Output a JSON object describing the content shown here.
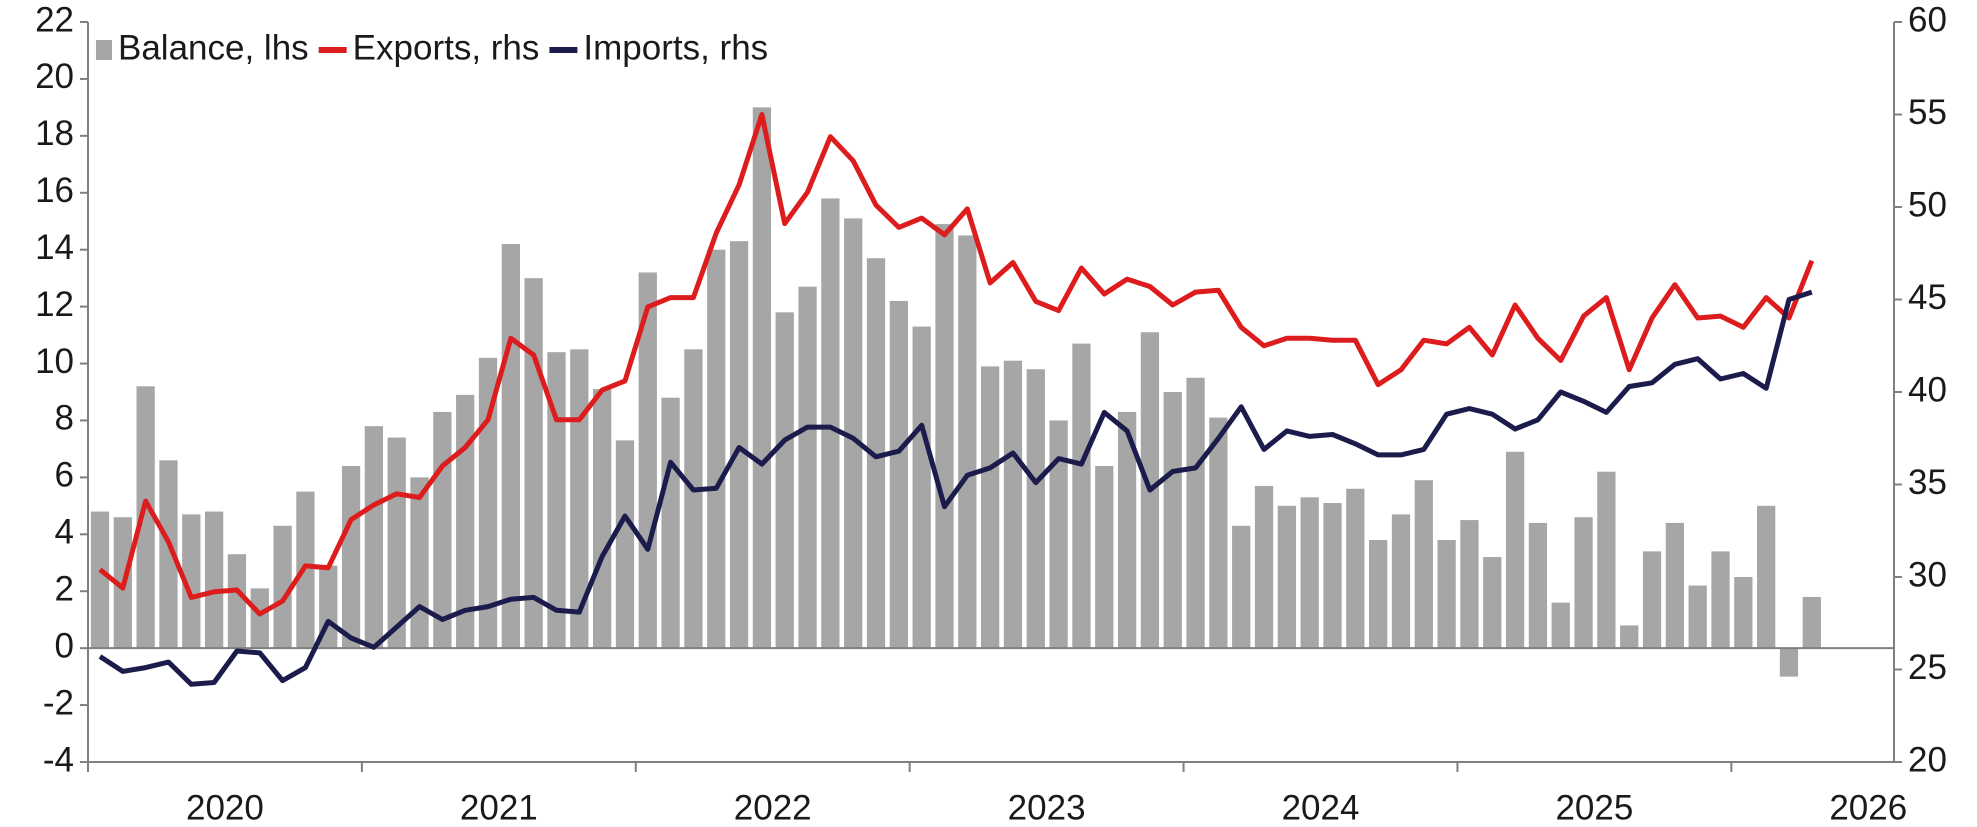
{
  "chart_data": {
    "type": "bar_line_dual",
    "years": [
      "2020",
      "2021",
      "2022",
      "2023",
      "2024",
      "2025",
      "2026"
    ],
    "series": [
      {
        "name": "Balance, lhs",
        "type": "bar",
        "color": "#a6a6a6",
        "axis": "y",
        "values": [
          4.8,
          4.6,
          9.2,
          6.6,
          4.7,
          4.8,
          3.3,
          2.1,
          4.3,
          5.5,
          2.9,
          6.4,
          7.8,
          7.4,
          6.0,
          8.3,
          8.9,
          10.2,
          14.2,
          13.0,
          10.4,
          10.5,
          9.1,
          7.3,
          13.2,
          8.8,
          10.5,
          14.0,
          14.3,
          19.0,
          11.8,
          12.7,
          15.8,
          15.1,
          13.7,
          12.2,
          11.3,
          14.9,
          14.5,
          9.9,
          10.1,
          9.8,
          8.0,
          10.7,
          6.4,
          8.3,
          11.1,
          9.0,
          9.5,
          8.1,
          4.3,
          5.7,
          5.0,
          5.3,
          5.1,
          5.6,
          3.8,
          4.7,
          5.9,
          3.8,
          4.5,
          3.2,
          6.9,
          4.4,
          1.6,
          4.6,
          6.2,
          0.8,
          3.4,
          4.4,
          2.2,
          3.4,
          2.5,
          5.0,
          -1.0,
          1.8
        ]
      },
      {
        "name": "Exports, rhs",
        "type": "line",
        "color": "#dd1d1d",
        "axis": "y2",
        "values": [
          30.4,
          29.4,
          34.1,
          31.9,
          28.9,
          29.2,
          29.3,
          28.0,
          28.7,
          30.6,
          30.5,
          33.1,
          33.9,
          34.5,
          34.3,
          36.0,
          37.0,
          38.5,
          42.9,
          42.0,
          38.5,
          38.5,
          40.1,
          40.6,
          44.6,
          45.1,
          45.1,
          48.6,
          51.2,
          55.0,
          49.1,
          50.8,
          53.8,
          52.5,
          50.1,
          48.9,
          49.4,
          48.5,
          49.9,
          45.9,
          47.0,
          44.9,
          44.4,
          46.7,
          45.3,
          46.1,
          45.7,
          44.7,
          45.4,
          45.5,
          43.5,
          42.5,
          42.9,
          42.9,
          42.8,
          42.8,
          40.4,
          41.2,
          42.8,
          42.6,
          43.5,
          42.0,
          44.7,
          42.9,
          41.7,
          44.1,
          45.1,
          41.2,
          44.0,
          45.8,
          44.0,
          44.1,
          43.5,
          45.1,
          44.0,
          47.1
        ]
      },
      {
        "name": "Imports, rhs",
        "type": "line",
        "color": "#1c1c4c",
        "axis": "y2",
        "values": [
          25.7,
          24.9,
          25.1,
          25.4,
          24.2,
          24.3,
          26.0,
          25.9,
          24.4,
          25.1,
          27.6,
          26.7,
          26.2,
          27.3,
          28.4,
          27.7,
          28.2,
          28.4,
          28.8,
          28.9,
          28.2,
          28.1,
          31.1,
          33.3,
          31.5,
          36.2,
          34.7,
          34.8,
          37.0,
          36.1,
          37.4,
          38.1,
          38.1,
          37.5,
          36.5,
          36.8,
          38.2,
          33.8,
          35.5,
          35.9,
          36.7,
          35.1,
          36.4,
          36.1,
          38.9,
          37.9,
          34.7,
          35.7,
          35.9,
          37.5,
          39.2,
          36.9,
          37.9,
          37.6,
          37.7,
          37.2,
          36.6,
          36.6,
          36.9,
          38.8,
          39.1,
          38.8,
          38.0,
          38.5,
          40.0,
          39.5,
          38.9,
          40.3,
          40.5,
          41.5,
          41.8,
          40.7,
          41.0,
          40.2,
          45.0,
          45.4
        ]
      }
    ],
    "ylim": [
      -4,
      22
    ],
    "yticks": [
      -4,
      -2,
      0,
      2,
      4,
      6,
      8,
      10,
      12,
      14,
      16,
      18,
      20,
      22
    ],
    "y2lim": [
      20,
      60
    ],
    "y2ticks": [
      20,
      25,
      30,
      35,
      40,
      45,
      50,
      55,
      60
    ],
    "legend": "top-left"
  }
}
